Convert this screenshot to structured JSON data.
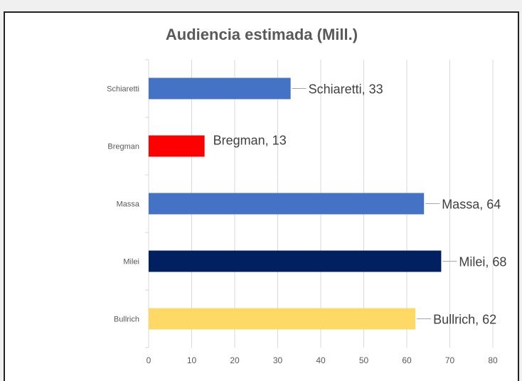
{
  "chart_data": {
    "type": "bar",
    "orientation": "horizontal",
    "title": "Audiencia estimada (Mill.)",
    "categories": [
      "Schiaretti",
      "Bregman",
      "Massa",
      "Milei",
      "Bullrich"
    ],
    "values": [
      33,
      13,
      64,
      68,
      62
    ],
    "colors": [
      "#4472C4",
      "#FF0000",
      "#4472C4",
      "#002060",
      "#FFD966"
    ],
    "data_labels": [
      "Schiaretti, 33",
      "Bregman, 13",
      "Massa, 64",
      "Milei, 68",
      "Bullrich, 62"
    ],
    "xlim": [
      0,
      80
    ],
    "xticks": [
      0,
      10,
      20,
      30,
      40,
      50,
      60,
      70,
      80
    ],
    "grid": true,
    "xlabel": "",
    "ylabel": ""
  }
}
